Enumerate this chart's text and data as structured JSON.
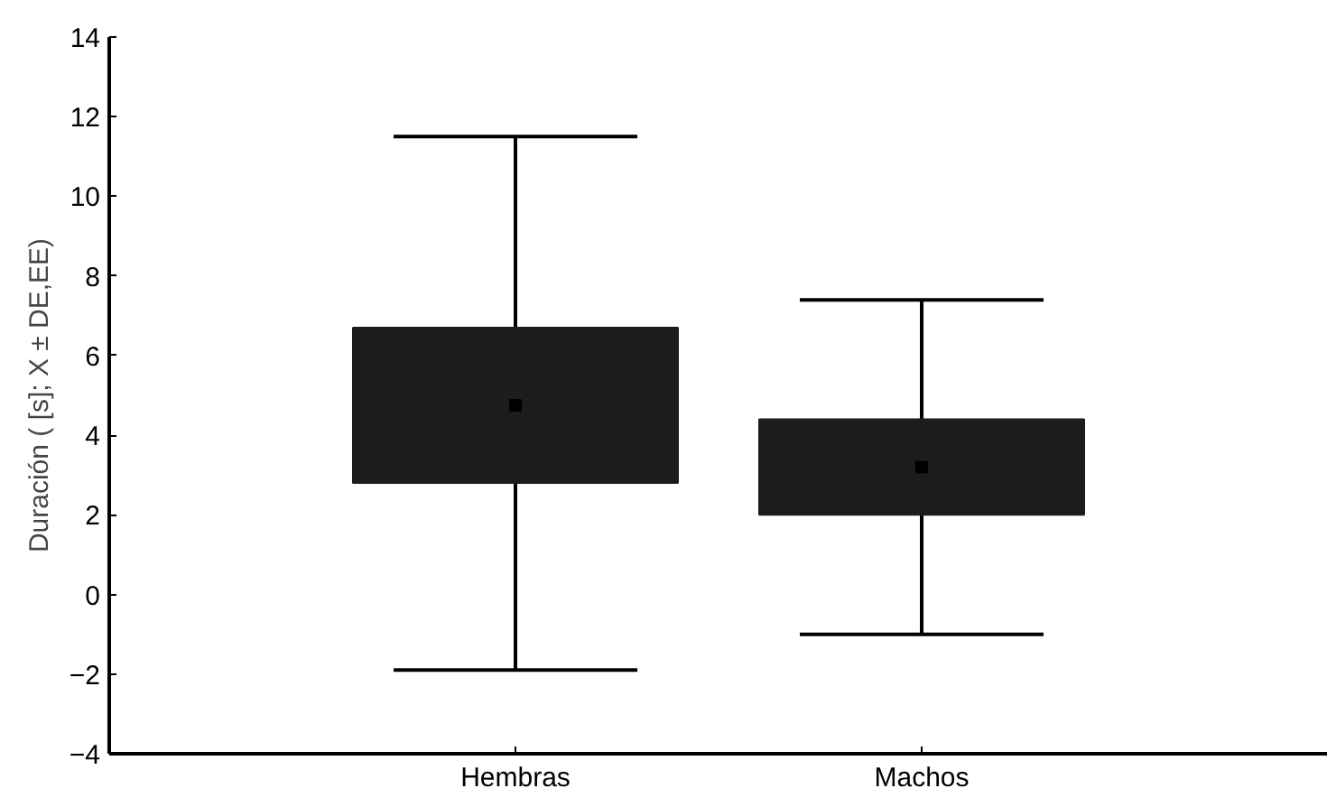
{
  "chart_data": {
    "type": "box",
    "ylabel": "Duración ( [s]; X ± DE,EE)",
    "categories": [
      "Hembras",
      "Machos"
    ],
    "color": "#1c1c1c",
    "boxes": [
      {
        "low": -1.9,
        "q1": 2.8,
        "median": 4.75,
        "q3": 6.7,
        "high": 11.5
      },
      {
        "low": -1.0,
        "q1": 2.0,
        "median": 3.2,
        "q3": 4.4,
        "high": 7.4
      }
    ],
    "ylim": [
      -4,
      14
    ],
    "yticks": [
      -4,
      -2,
      0,
      2,
      4,
      6,
      8,
      10,
      12,
      14
    ],
    "grid": false
  }
}
